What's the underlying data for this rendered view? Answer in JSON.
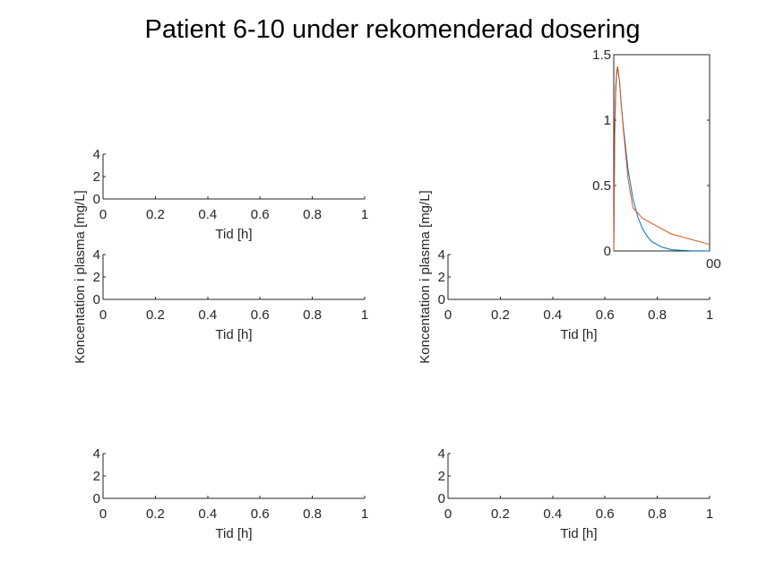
{
  "figure": {
    "title": "Patient 6-10 under rekomenderad dosering"
  },
  "chart_data": [
    {
      "id": "panel-r1-left",
      "type": "line",
      "title": "",
      "xlabel": "Tid [h]",
      "ylabel": "",
      "xlim": [
        0,
        1
      ],
      "ylim": [
        0,
        4
      ],
      "xticks": [
        "0",
        "0.2",
        "0.4",
        "0.6",
        "0.8",
        "1"
      ],
      "yticks": [
        "0",
        "2",
        "4"
      ],
      "series": []
    },
    {
      "id": "panel-r2-left",
      "type": "line",
      "title": "",
      "xlabel": "Tid [h]",
      "ylabel": "Koncentation i plasma [mg/L]",
      "xlim": [
        0,
        1
      ],
      "ylim": [
        0,
        4
      ],
      "xticks": [
        "0",
        "0.2",
        "0.4",
        "0.6",
        "0.8",
        "1"
      ],
      "yticks": [
        "0",
        "2",
        "4"
      ],
      "series": []
    },
    {
      "id": "panel-r2-right",
      "type": "line",
      "title": "",
      "xlabel": "Tid [h]",
      "ylabel": "Koncentation i plasma [mg/L]",
      "xlim": [
        0,
        1
      ],
      "ylim": [
        0,
        4
      ],
      "xticks": [
        "0",
        "0.2",
        "0.4",
        "0.6",
        "0.8",
        "1"
      ],
      "yticks": [
        "0",
        "2",
        "4"
      ],
      "series": []
    },
    {
      "id": "panel-r3-left",
      "type": "line",
      "title": "",
      "xlabel": "Tid [h]",
      "ylabel": "",
      "xlim": [
        0,
        1
      ],
      "ylim": [
        0,
        4
      ],
      "xticks": [
        "0",
        "0.2",
        "0.4",
        "0.6",
        "0.8",
        "1"
      ],
      "yticks": [
        "0",
        "2",
        "4"
      ],
      "series": []
    },
    {
      "id": "panel-r3-right",
      "type": "line",
      "title": "",
      "xlabel": "Tid [h]",
      "ylabel": "",
      "xlim": [
        0,
        1
      ],
      "ylim": [
        0,
        4
      ],
      "xticks": [
        "0",
        "0.2",
        "0.4",
        "0.6",
        "0.8",
        "1"
      ],
      "yticks": [
        "0",
        "2",
        "4"
      ],
      "series": []
    },
    {
      "id": "panel-r1-right",
      "type": "line",
      "title": "",
      "xlabel": "",
      "ylabel": "",
      "xlim": [
        0,
        100
      ],
      "ylim": [
        0,
        1.5
      ],
      "xticks": [],
      "yticks": [
        "0",
        "0.5",
        "1",
        "1.5"
      ],
      "xtick_fragment": "00",
      "series": [
        {
          "color": "#0072BD",
          "x": [
            0,
            0.2,
            1,
            2,
            3,
            4,
            6,
            8,
            10,
            15,
            20,
            25,
            30,
            35,
            40,
            45,
            50,
            55,
            60,
            70,
            80,
            100
          ],
          "y": [
            0,
            0.1,
            0.9,
            1.2,
            1.35,
            1.4,
            1.3,
            1.1,
            0.95,
            0.62,
            0.4,
            0.26,
            0.17,
            0.11,
            0.07,
            0.05,
            0.03,
            0.02,
            0.01,
            0.005,
            0.002,
            0.0
          ]
        },
        {
          "color": "#D95319",
          "x": [
            0,
            0.2,
            1,
            2,
            3,
            4,
            6,
            8,
            10,
            15,
            20,
            30,
            40,
            50,
            60,
            70,
            80,
            90,
            100
          ],
          "y": [
            0,
            0.25,
            0.95,
            1.25,
            1.37,
            1.41,
            1.3,
            1.1,
            0.93,
            0.55,
            0.33,
            0.25,
            0.21,
            0.17,
            0.13,
            0.11,
            0.09,
            0.07,
            0.05
          ]
        }
      ]
    }
  ]
}
